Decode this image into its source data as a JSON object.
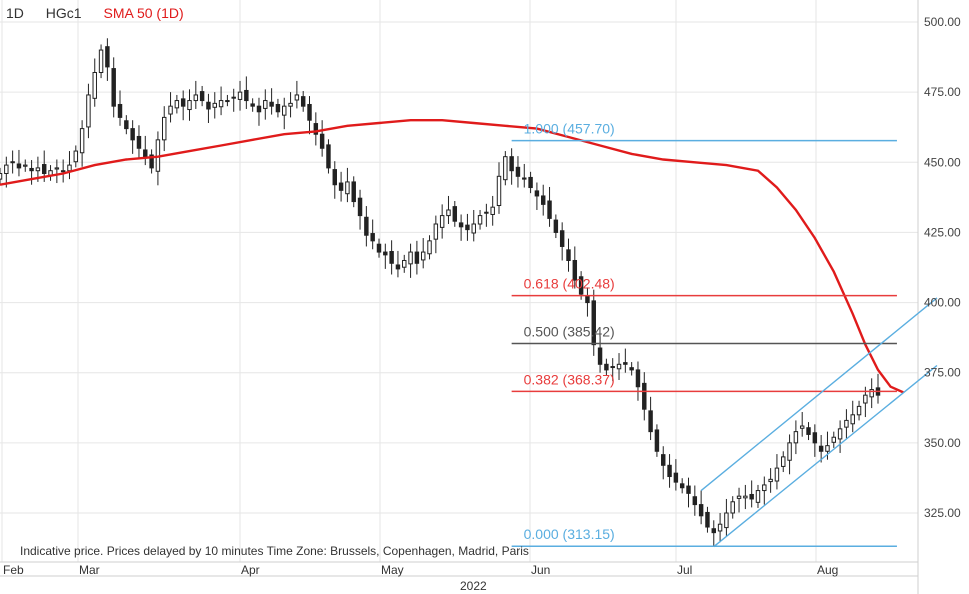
{
  "legend": {
    "interval": "1D",
    "symbol": "HGc1",
    "indicator": "SMA 50  (1D)"
  },
  "footer_note": "Indicative price. Prices delayed by 10 minutes    Time Zone: Brussels, Copenhagen, Madrid, Paris",
  "colors": {
    "sma": "#e01b1b",
    "fib_blue": "#5aaee0",
    "fib_red": "#e83c3c",
    "fib_gray": "#555555",
    "channel": "#5aaee0",
    "candle": "#222222",
    "grid": "#e6e6e6"
  },
  "chart_data": {
    "type": "candlestick",
    "symbol": "HGc1",
    "interval": "1D",
    "y_axis": {
      "ticks": [
        500,
        475,
        450,
        425,
        400,
        375,
        350,
        325
      ],
      "tick_labels": [
        "500.00",
        "475.00",
        "450.00",
        "425.00",
        "400.00",
        "375.00",
        "350.00",
        "325.00"
      ],
      "range": [
        310,
        505
      ]
    },
    "x_axis": {
      "labels": [
        "Feb",
        "Mar",
        "Apr",
        "May",
        "Jun",
        "Jul",
        "Aug"
      ],
      "year_label": "2022"
    },
    "closes": [
      446,
      449,
      450,
      448,
      449,
      447,
      448,
      446,
      447,
      448,
      447,
      449,
      454,
      462,
      474,
      482,
      490,
      484,
      470,
      466,
      462,
      458,
      455,
      452,
      448,
      458,
      466,
      470,
      472,
      470,
      472,
      474,
      472,
      469,
      471,
      472,
      472,
      473,
      475,
      472,
      470,
      468,
      472,
      470,
      468,
      470,
      471,
      474,
      470,
      465,
      460,
      455,
      448,
      442,
      440,
      443,
      436,
      431,
      424,
      422,
      418,
      417,
      414,
      412,
      415,
      418,
      414,
      418,
      422,
      428,
      431,
      433,
      429,
      427,
      426,
      428,
      431,
      432,
      434,
      445,
      452,
      447,
      445,
      444,
      441,
      438,
      435,
      430,
      425,
      420,
      415,
      408,
      403,
      400,
      385,
      378,
      376,
      377,
      378,
      378,
      376,
      370,
      362,
      354,
      347,
      342,
      338,
      336,
      334,
      332,
      328,
      324,
      320,
      318,
      321,
      325,
      329,
      331,
      331,
      330,
      333,
      335,
      337,
      341,
      345,
      350,
      354,
      356,
      353,
      350,
      347,
      349,
      352,
      355,
      358,
      360,
      363,
      367,
      369,
      367
    ],
    "sma50": [
      442,
      444,
      446,
      449,
      451,
      452,
      454,
      456,
      458,
      460,
      461,
      463,
      464,
      465,
      465,
      464,
      463,
      462,
      459,
      456,
      453,
      451,
      450,
      449,
      447,
      441,
      433,
      423,
      411,
      396,
      385,
      376,
      370,
      368
    ],
    "sma_x_index": [
      0,
      5,
      10,
      15,
      20,
      25,
      30,
      35,
      40,
      45,
      50,
      55,
      60,
      65,
      70,
      75,
      80,
      85,
      90,
      95,
      100,
      105,
      110,
      115,
      120,
      123,
      126,
      129,
      132,
      135,
      137,
      139,
      141,
      143
    ],
    "fibonacci": [
      {
        "label": "1.000 (457.70)",
        "level": 1.0,
        "value": 457.7
      },
      {
        "label": "0.618 (402.48)",
        "level": 0.618,
        "value": 402.48
      },
      {
        "label": "0.500 (385.42)",
        "level": 0.5,
        "value": 385.42
      },
      {
        "label": "0.382 (368.37)",
        "level": 0.382,
        "value": 368.37
      },
      {
        "label": "0.000 (313.15)",
        "level": 0.0,
        "value": 313.15
      }
    ],
    "channel": {
      "upper": [
        {
          "i": 111,
          "v": 333
        },
        {
          "i": 142,
          "v": 390
        }
      ],
      "lower": [
        {
          "i": 113,
          "v": 313
        },
        {
          "i": 142,
          "v": 366
        }
      ]
    },
    "fib_start_index": 81,
    "fib_end_index": 142
  }
}
